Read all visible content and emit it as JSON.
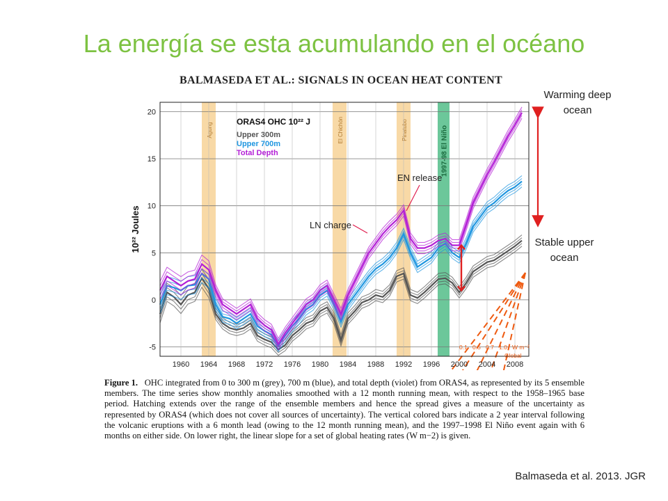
{
  "slide": {
    "title": "La energía se esta acumulando en el océano",
    "citation": "Balmaseda et al. 2013. JGR"
  },
  "paper": {
    "header": "BALMASEDA ET AL.: SIGNALS IN OCEAN HEAT CONTENT",
    "caption_label": "Figure 1.",
    "caption_text": "OHC integrated from 0 to 300 m (grey), 700 m (blue), and total depth (violet) from ORAS4, as represented by its 5 ensemble members. The time series show monthly anomalies smoothed with a 12 month running mean, with respect to the 1958–1965 base period. Hatching extends over the range of the ensemble members and hence the spread gives a measure of the uncertainty as represented by ORAS4 (which does not cover all sources of uncertainty). The vertical colored bars indicate a 2 year interval following the volcanic eruptions with a 6 month lead (owing to the 12 month running mean), and the 1997–1998 El Niño event again with 6 months on either side. On lower right, the linear slope for a set of global heating rates (W m−2) is given."
  },
  "annotations": {
    "warming": "Warming deep ocean",
    "stable": "Stable upper ocean",
    "ln_charge": "LN charge",
    "en_release": "EN release"
  },
  "colors": {
    "title": "#7dc242",
    "upper300": "#555555",
    "upper700": "#1f96e0",
    "total": "#b31fd6",
    "volcano_bar": "#f8d9a6",
    "elnino_bar": "#6cc79a",
    "arrow": "#e02020",
    "rate_lines": "#ee5a10"
  },
  "chart_data": {
    "type": "line",
    "legend_title": "ORAS4  OHC 10²² J",
    "ylabel": "10²² Joules",
    "xlim": [
      1957,
      2010
    ],
    "ylim": [
      -6,
      21
    ],
    "xticks": [
      1960,
      1964,
      1968,
      1972,
      1976,
      1980,
      1984,
      1988,
      1992,
      1996,
      2000,
      2004,
      2008
    ],
    "yticks": [
      -5,
      0,
      5,
      10,
      15,
      20
    ],
    "grid": true,
    "shaded_bars": [
      {
        "label": "Agung",
        "x0": 1963.0,
        "x1": 1965.0,
        "kind": "volcano"
      },
      {
        "label": "El Chichón",
        "x0": 1981.8,
        "x1": 1983.8,
        "kind": "volcano"
      },
      {
        "label": "Pinatubo",
        "x0": 1991.0,
        "x1": 1993.0,
        "kind": "volcano"
      },
      {
        "label": "1997-98 El Niño",
        "x0": 1996.9,
        "x1": 1998.6,
        "kind": "elnino"
      }
    ],
    "series": [
      {
        "name": "Upper 300m",
        "key": "upper300",
        "x": [
          1957,
          1958,
          1959,
          1960,
          1961,
          1962,
          1963,
          1964,
          1965,
          1966,
          1967,
          1968,
          1969,
          1970,
          1971,
          1972,
          1973,
          1974,
          1975,
          1976,
          1977,
          1978,
          1979,
          1980,
          1981,
          1982,
          1983,
          1984,
          1985,
          1986,
          1987,
          1988,
          1989,
          1990,
          1991,
          1992,
          1993,
          1994,
          1995,
          1996,
          1997,
          1998,
          1999,
          2000,
          2001,
          2002,
          2003,
          2004,
          2005,
          2006,
          2007,
          2008,
          2009
        ],
        "y": [
          -1.5,
          0.8,
          0.3,
          -0.5,
          0.5,
          0.8,
          2.3,
          1.2,
          -1.5,
          -2.5,
          -3.0,
          -3.2,
          -3.0,
          -2.5,
          -3.8,
          -4.2,
          -4.5,
          -5.3,
          -4.8,
          -3.8,
          -3.2,
          -2.5,
          -2.2,
          -1.2,
          -0.8,
          -2.0,
          -4.3,
          -2.0,
          -1.2,
          -0.3,
          0.0,
          0.5,
          0.3,
          1.0,
          2.5,
          2.8,
          0.5,
          0.2,
          0.8,
          1.5,
          2.2,
          2.3,
          1.8,
          0.8,
          1.8,
          3.0,
          3.5,
          4.0,
          4.2,
          4.7,
          5.2,
          5.7,
          6.3
        ]
      },
      {
        "name": "Upper 700m",
        "key": "upper700",
        "x": [
          1957,
          1958,
          1959,
          1960,
          1961,
          1962,
          1963,
          1964,
          1965,
          1966,
          1967,
          1968,
          1969,
          1970,
          1971,
          1972,
          1973,
          1974,
          1975,
          1976,
          1977,
          1978,
          1979,
          1980,
          1981,
          1982,
          1983,
          1984,
          1985,
          1986,
          1987,
          1988,
          1989,
          1990,
          1991,
          1992,
          1993,
          1994,
          1995,
          1996,
          1997,
          1998,
          1999,
          2000,
          2001,
          2002,
          2003,
          2004,
          2005,
          2006,
          2007,
          2008,
          2009
        ],
        "y": [
          -0.5,
          1.5,
          1.3,
          1.0,
          1.5,
          1.6,
          2.8,
          2.2,
          -0.5,
          -1.8,
          -2.0,
          -2.5,
          -2.0,
          -1.5,
          -2.8,
          -3.3,
          -3.7,
          -4.9,
          -3.8,
          -2.8,
          -2.0,
          -1.0,
          -0.5,
          0.5,
          1.0,
          -0.5,
          -2.3,
          -0.5,
          0.5,
          1.5,
          2.5,
          3.3,
          3.8,
          4.5,
          5.5,
          7.0,
          5.0,
          3.5,
          4.0,
          4.5,
          5.5,
          6.0,
          5.0,
          4.5,
          6.0,
          7.8,
          8.8,
          9.8,
          10.3,
          11.0,
          11.6,
          12.0,
          12.6
        ]
      },
      {
        "name": "Total Depth",
        "key": "total",
        "x": [
          1957,
          1958,
          1959,
          1960,
          1961,
          1962,
          1963,
          1964,
          1965,
          1966,
          1967,
          1968,
          1969,
          1970,
          1971,
          1972,
          1973,
          1974,
          1975,
          1976,
          1977,
          1978,
          1979,
          1980,
          1981,
          1982,
          1983,
          1984,
          1985,
          1986,
          1987,
          1988,
          1989,
          1990,
          1991,
          1992,
          1993,
          1994,
          1995,
          1996,
          1997,
          1998,
          1999,
          2000,
          2001,
          2002,
          2003,
          2004,
          2005,
          2006,
          2007,
          2008,
          2009
        ],
        "y": [
          1.0,
          2.5,
          2.0,
          1.5,
          2.0,
          2.2,
          3.8,
          3.2,
          1.0,
          -0.5,
          -1.0,
          -1.5,
          -1.0,
          -0.5,
          -2.0,
          -2.7,
          -3.2,
          -4.7,
          -3.5,
          -2.5,
          -1.5,
          -0.5,
          0.0,
          1.0,
          1.5,
          0.0,
          -1.5,
          0.5,
          2.0,
          3.5,
          5.0,
          6.0,
          7.0,
          7.8,
          8.5,
          9.5,
          6.5,
          5.5,
          5.5,
          5.8,
          6.3,
          6.5,
          5.8,
          5.8,
          8.0,
          10.3,
          11.8,
          13.3,
          14.6,
          16.0,
          17.4,
          18.6,
          19.9
        ]
      }
    ],
    "rate_labels": [
      "0.1",
      "0.5",
      "0.7",
      "1.0",
      "W m⁻²"
    ],
    "rate_caption": "Global"
  }
}
